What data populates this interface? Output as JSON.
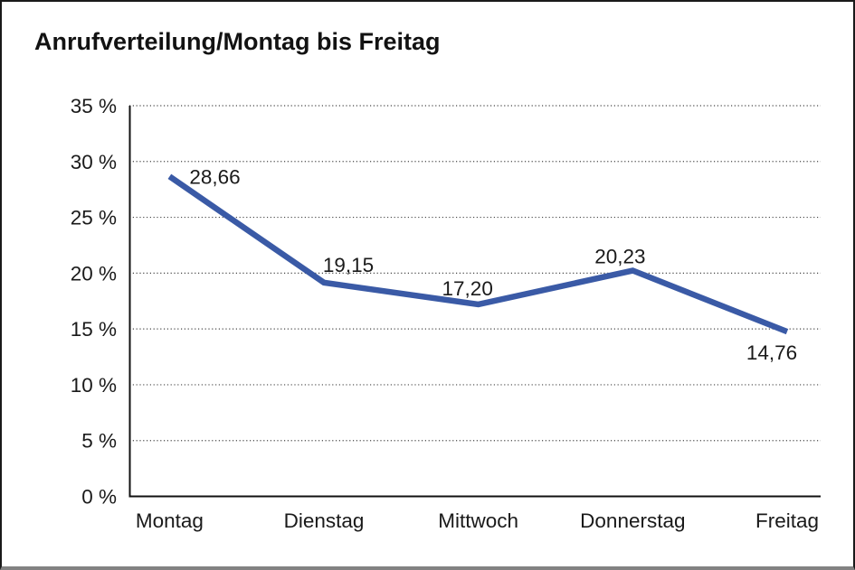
{
  "window": {
    "background": "#ffffff",
    "frame_border_color": "#1a1a1a",
    "bottom_bar_color": "#828282"
  },
  "chart_data": {
    "type": "line",
    "title": "Anrufverteilung/Montag bis Freitag",
    "categories": [
      "Montag",
      "Dienstag",
      "Mittwoch",
      "Donnerstag",
      "Freitag"
    ],
    "values": [
      28.66,
      19.15,
      17.2,
      20.23,
      14.76
    ],
    "data_labels": [
      "28,66",
      "19,15",
      "17,20",
      "20,23",
      "14,76"
    ],
    "data_label_placements": [
      "right",
      "above",
      "above",
      "above",
      "below"
    ],
    "y_ticks": [
      0,
      5,
      10,
      15,
      20,
      25,
      30,
      35
    ],
    "y_tick_labels": [
      "0 %",
      "5 %",
      "10 %",
      "15 %",
      "20 %",
      "25 %",
      "30 %",
      "35 %"
    ],
    "ylim": [
      0,
      35
    ],
    "xlabel": "",
    "ylabel": "",
    "grid": "horizontal-dotted",
    "legend": "none",
    "series_color": "#3A5AA6",
    "axis_color": "#111111",
    "gridline_color": "#474747",
    "text_color": "#1a1a1a"
  }
}
